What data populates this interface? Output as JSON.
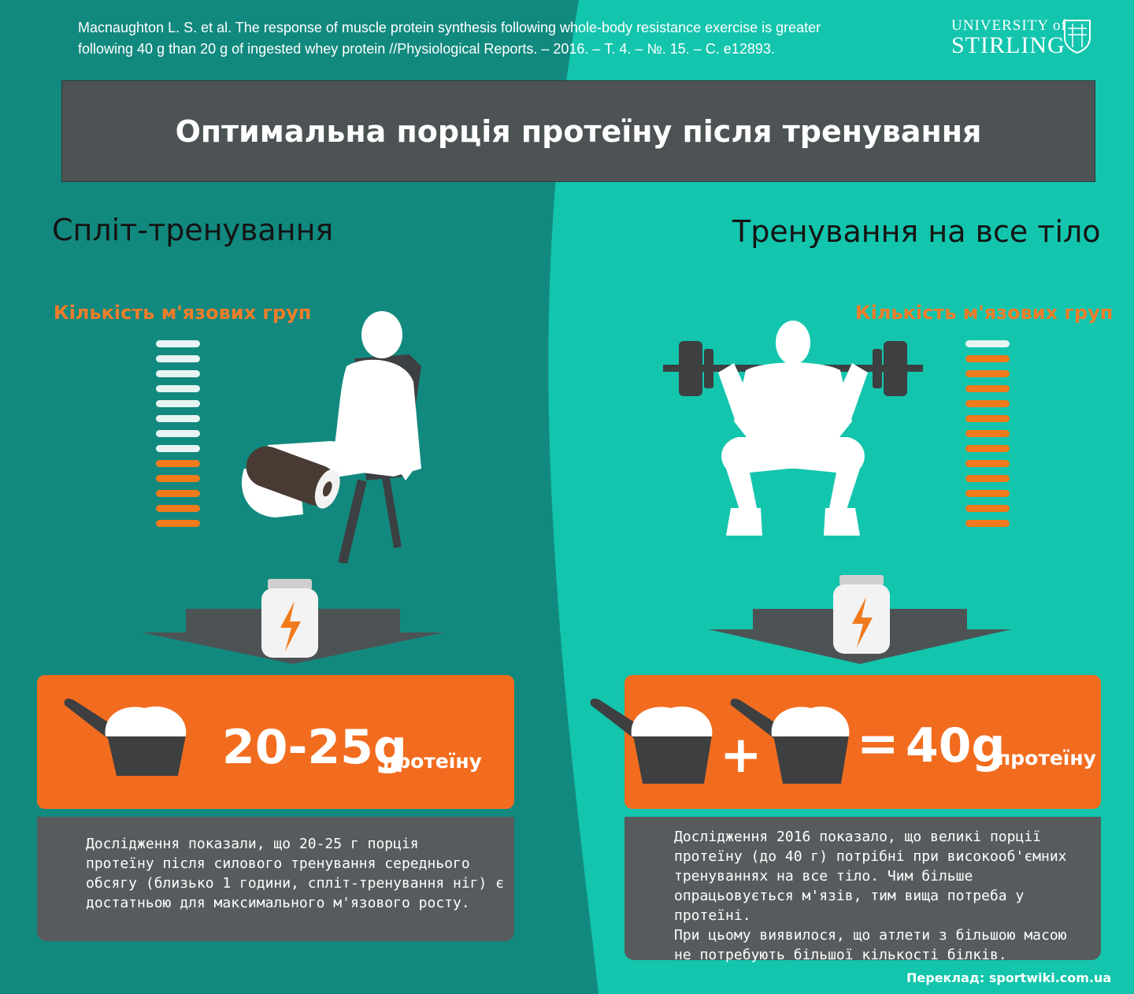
{
  "citation": {
    "line1": "Macnaughton L. S. et al. The response of muscle protein synthesis following whole-body resistance exercise is greater",
    "line2": "following 40 g than 20 g of ingested whey protein //Physiological Reports. – 2016. – Т. 4. – №. 15. – С. e12893."
  },
  "university": {
    "line1": "UNIVERSITY of",
    "line2": "STIRLING",
    "icon": "crest-icon"
  },
  "title": "Оптимальна порція протеїну після тренування",
  "colors": {
    "dark_teal": "#12897e",
    "light_teal": "#13c5ad",
    "orange": "#f26c1f",
    "gray": "#575b5d"
  },
  "left": {
    "heading": "Спліт-тренування",
    "muscle_label": "Кількість м'язових груп",
    "muscle_bars": {
      "total": 13,
      "worked": 5
    },
    "amount": "20-25g",
    "unit": "протеїну",
    "scoops": 1,
    "text": [
      "Дослідження показали, що 20-25 г порція",
      "протеїну після силового тренування середнього",
      "обсягу (близько 1 години, спліт-тренування ніг) є",
      "достатньою для максимального м'язового росту."
    ]
  },
  "right": {
    "heading": "Тренування на все тіло",
    "muscle_label": "Кількість м'язових груп",
    "muscle_bars": {
      "total": 13,
      "worked": 12
    },
    "plus": "+",
    "equals": "=",
    "amount": "40g",
    "unit": "протеїну",
    "scoops": 2,
    "text": [
      "Дослідження 2016 показало, що великі порції",
      "протеїну (до 40 г) потрібні при високооб'ємних",
      "тренуваннях на все тіло. Чим більше",
      "опрацьовується м'язів, тим вища потреба у протеїні.",
      "При цьому виявилося, що атлети з більшою масою",
      "не потребують більшої кількості білків."
    ]
  },
  "credit": "Переклад: sportwiki.com.ua"
}
